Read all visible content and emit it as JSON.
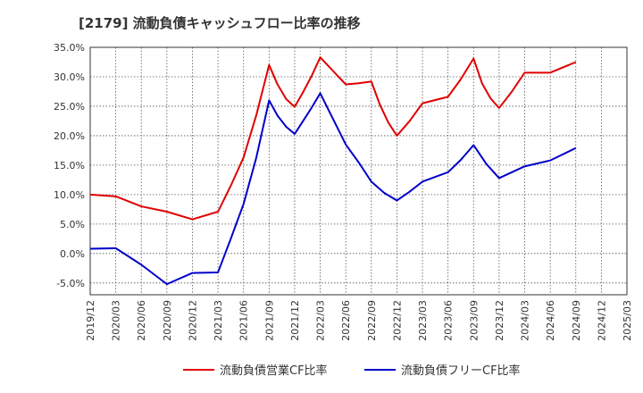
{
  "chart_data": {
    "type": "line",
    "title": "[2179]  流動負債キャッシュフロー比率の推移",
    "xlabel": "",
    "ylabel": "",
    "ylim": [
      -7,
      35
    ],
    "yticks": [
      35,
      30,
      25,
      20,
      15,
      10,
      5,
      0,
      -5
    ],
    "ytick_labels": [
      "35.0%",
      "30.0%",
      "25.0%",
      "20.0%",
      "15.0%",
      "10.0%",
      "5.0%",
      "0.0%",
      "-5.0%"
    ],
    "x": [
      "2019/12",
      "2020/03",
      "2020/06",
      "2020/09",
      "2020/12",
      "2021/03",
      "2021/06",
      "2021/09",
      "2021/12",
      "2022/03",
      "2022/06",
      "2022/09",
      "2022/12",
      "2023/03",
      "2023/06",
      "2023/09",
      "2023/12",
      "2024/03",
      "2024/06",
      "2024/09",
      "2024/12",
      "2025/03"
    ],
    "grid": true,
    "legend_position": "bottom",
    "series": [
      {
        "name": "流動負債営業CF比率",
        "color": "#e00000",
        "points": [
          [
            0,
            10.0
          ],
          [
            1,
            9.7
          ],
          [
            2,
            8.0
          ],
          [
            3,
            7.1
          ],
          [
            4,
            5.8
          ],
          [
            5,
            7.1
          ],
          [
            5.5,
            11.5
          ],
          [
            6,
            16.3
          ],
          [
            6.5,
            23.5
          ],
          [
            7,
            32.0
          ],
          [
            7.33,
            28.7
          ],
          [
            7.67,
            26.2
          ],
          [
            8,
            24.9
          ],
          [
            8.33,
            27.4
          ],
          [
            8.67,
            30.2
          ],
          [
            9,
            33.3
          ],
          [
            10,
            28.7
          ],
          [
            10.5,
            28.9
          ],
          [
            11,
            29.2
          ],
          [
            11.33,
            25.3
          ],
          [
            11.67,
            22.2
          ],
          [
            12,
            20.0
          ],
          [
            12.5,
            22.5
          ],
          [
            13,
            25.5
          ],
          [
            14,
            26.6
          ],
          [
            14.5,
            29.6
          ],
          [
            15,
            33.1
          ],
          [
            15.33,
            28.9
          ],
          [
            15.67,
            26.3
          ],
          [
            16,
            24.7
          ],
          [
            16.5,
            27.5
          ],
          [
            17,
            30.7
          ],
          [
            18,
            30.7
          ],
          [
            19,
            32.5
          ]
        ]
      },
      {
        "name": "流動負債フリーCF比率",
        "color": "#0000cc",
        "points": [
          [
            0,
            0.8
          ],
          [
            1,
            0.9
          ],
          [
            2,
            -1.9
          ],
          [
            3,
            -5.2
          ],
          [
            4,
            -3.3
          ],
          [
            5,
            -3.2
          ],
          [
            5.5,
            2.5
          ],
          [
            6,
            8.4
          ],
          [
            6.5,
            16.3
          ],
          [
            7,
            26.0
          ],
          [
            7.33,
            23.4
          ],
          [
            7.67,
            21.5
          ],
          [
            8,
            20.3
          ],
          [
            8.33,
            22.5
          ],
          [
            8.67,
            24.8
          ],
          [
            9,
            27.2
          ],
          [
            10,
            18.5
          ],
          [
            10.5,
            15.5
          ],
          [
            11,
            12.2
          ],
          [
            11.5,
            10.3
          ],
          [
            12,
            9.0
          ],
          [
            12.5,
            10.5
          ],
          [
            13,
            12.2
          ],
          [
            14,
            13.8
          ],
          [
            14.5,
            15.9
          ],
          [
            15,
            18.4
          ],
          [
            15.5,
            15.2
          ],
          [
            16,
            12.8
          ],
          [
            17,
            14.8
          ],
          [
            18,
            15.8
          ],
          [
            19,
            17.9
          ]
        ]
      }
    ]
  }
}
